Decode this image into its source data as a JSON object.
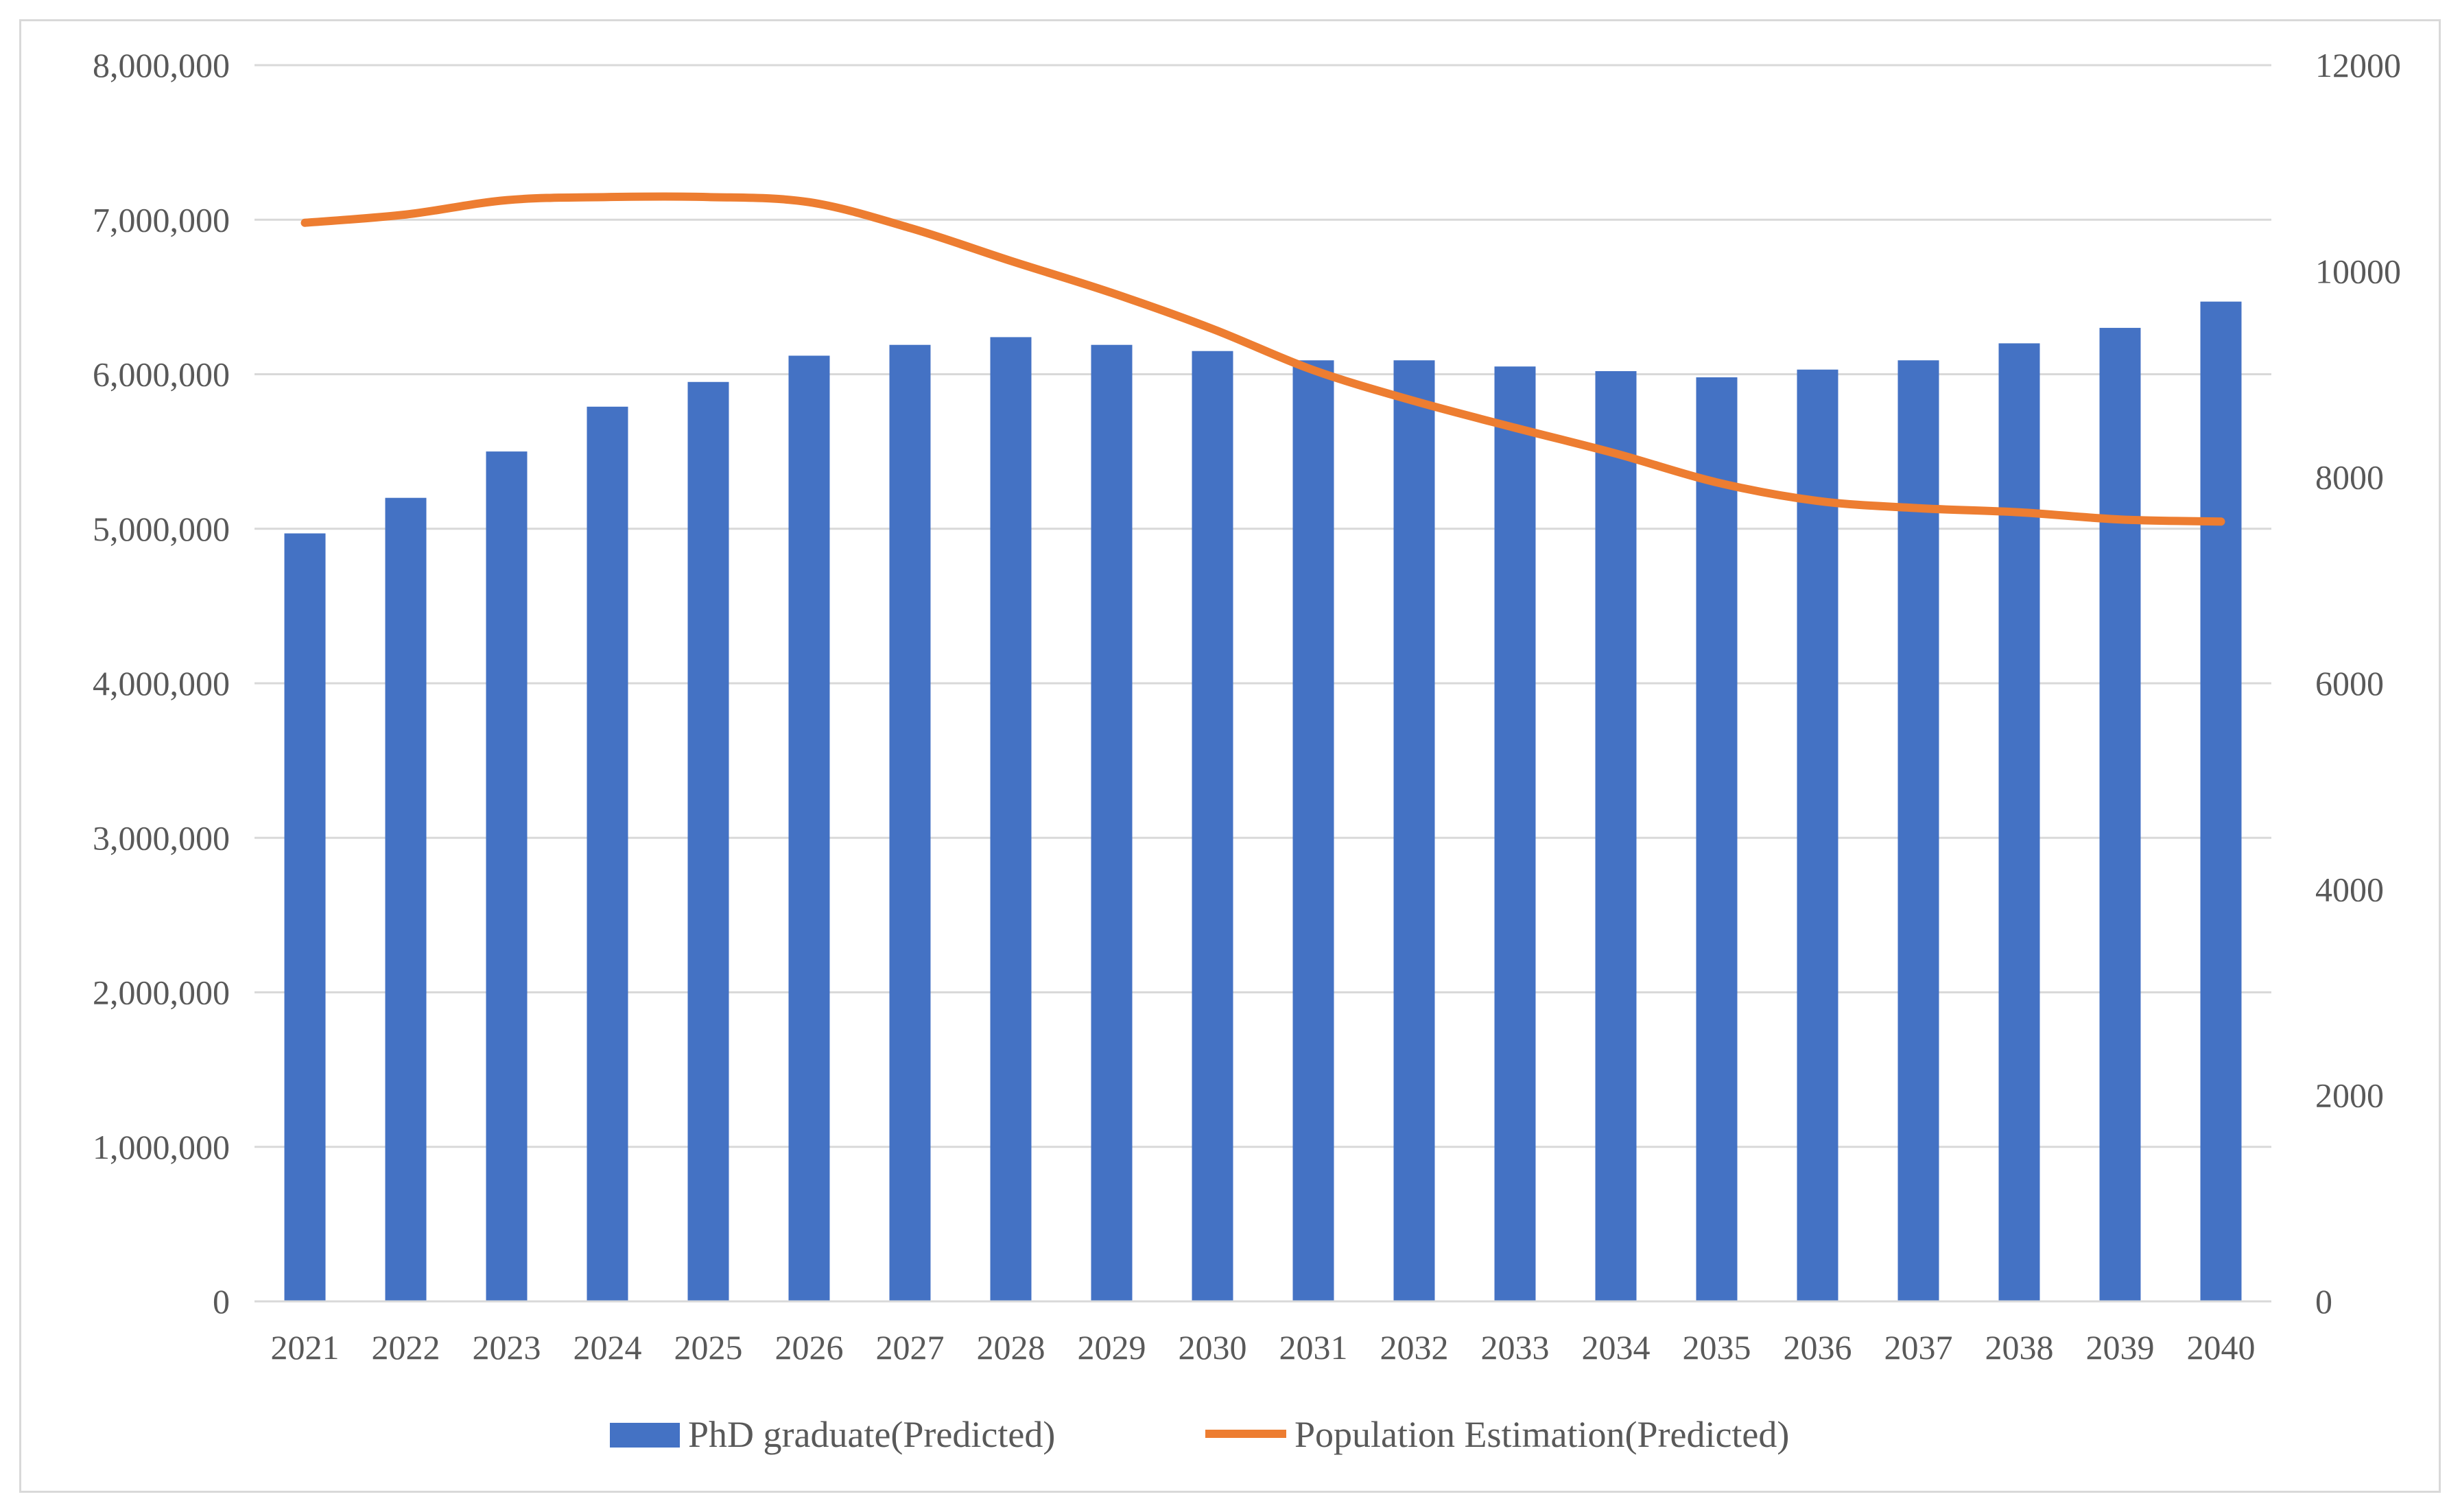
{
  "chart_data": {
    "type": "bar",
    "categories": [
      "2021",
      "2022",
      "2023",
      "2024",
      "2025",
      "2026",
      "2027",
      "2028",
      "2029",
      "2030",
      "2031",
      "2032",
      "2033",
      "2034",
      "2035",
      "2036",
      "2037",
      "2038",
      "2039",
      "2040"
    ],
    "series": [
      {
        "name": "PhD graduate(Predicted)",
        "type": "bar",
        "axis": "left",
        "color": "#4472c4",
        "values": [
          4970000,
          5200000,
          5500000,
          5790000,
          5950000,
          6120000,
          6190000,
          6240000,
          6190000,
          6150000,
          6090000,
          6090000,
          6050000,
          6020000,
          5980000,
          6030000,
          6090000,
          6200000,
          6300000,
          6470000
        ]
      },
      {
        "name": "Population Estimation(Predicted)",
        "type": "line",
        "axis": "right",
        "color": "#ed7d31",
        "values": [
          10470,
          10550,
          10690,
          10720,
          10720,
          10670,
          10420,
          10100,
          9790,
          9440,
          9040,
          8740,
          8480,
          8230,
          7950,
          7770,
          7700,
          7660,
          7590,
          7570
        ]
      }
    ],
    "y_left": {
      "range": [
        0,
        8000000
      ],
      "ticks": [
        "0",
        "1,000,000",
        "2,000,000",
        "3,000,000",
        "4,000,000",
        "5,000,000",
        "6,000,000",
        "7,000,000",
        "8,000,000"
      ]
    },
    "y_right": {
      "range": [
        0,
        12000
      ],
      "ticks": [
        "0",
        "2000",
        "4000",
        "6000",
        "8000",
        "10000",
        "12000"
      ]
    },
    "grid": true,
    "legend_position": "bottom",
    "gridline_color": "#d9d9d9"
  }
}
